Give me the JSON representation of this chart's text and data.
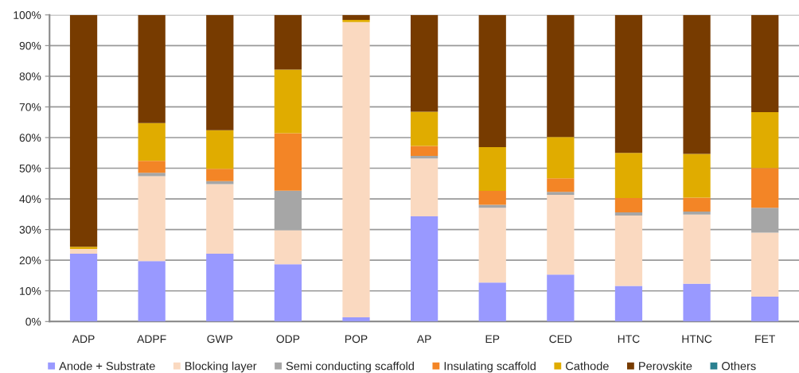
{
  "chart_data": {
    "type": "bar",
    "stacked": true,
    "categories": [
      "ADP",
      "ADPF",
      "GWP",
      "ODP",
      "POP",
      "AP",
      "EP",
      "CED",
      "HTC",
      "HTNC",
      "FET"
    ],
    "series": [
      {
        "name": "Anode + Substrate",
        "color": "#9999ff",
        "values": [
          22.1,
          19.7,
          22.1,
          18.7,
          1.4,
          34.3,
          12.7,
          15.3,
          11.6,
          12.3,
          8.1
        ]
      },
      {
        "name": "Blocking layer",
        "color": "#fad9c0",
        "values": [
          1.6,
          27.7,
          22.7,
          11.1,
          96.3,
          18.9,
          24.4,
          26.0,
          23.0,
          22.6,
          20.9
        ]
      },
      {
        "name": "Semi conducting scaffold",
        "color": "#a6a6a6",
        "values": [
          0,
          1.1,
          1.0,
          12.9,
          0,
          0.8,
          1.0,
          1.0,
          1.0,
          1.0,
          8.1
        ]
      },
      {
        "name": "Insulating scaffold",
        "color": "#f38526",
        "values": [
          0,
          3.9,
          4.0,
          18.7,
          0,
          3.3,
          4.5,
          4.4,
          4.7,
          4.5,
          13.0
        ]
      },
      {
        "name": "Cathode",
        "color": "#e0ac00",
        "values": [
          0.7,
          12.3,
          12.6,
          20.8,
          0.7,
          11.1,
          14.3,
          13.5,
          14.7,
          14.3,
          18.2
        ]
      },
      {
        "name": "Perovskite",
        "color": "#773b00",
        "values": [
          75.6,
          35.3,
          37.6,
          17.8,
          1.6,
          31.6,
          43.1,
          39.8,
          45.0,
          45.3,
          31.7
        ]
      },
      {
        "name": "Others",
        "color": "#2a8090",
        "values": [
          0,
          0,
          0,
          0,
          0,
          0,
          0,
          0,
          0,
          0,
          0
        ]
      }
    ],
    "ylim": [
      0,
      100
    ],
    "yticks": [
      {
        "value": 0,
        "label": "0%"
      },
      {
        "value": 10,
        "label": "10%"
      },
      {
        "value": 20,
        "label": "20%"
      },
      {
        "value": 30,
        "label": "30%"
      },
      {
        "value": 40,
        "label": "40%"
      },
      {
        "value": 50,
        "label": "50%"
      },
      {
        "value": 60,
        "label": "60%"
      },
      {
        "value": 70,
        "label": "70%"
      },
      {
        "value": 80,
        "label": "80%"
      },
      {
        "value": 90,
        "label": "90%"
      },
      {
        "value": 100,
        "label": "100%"
      }
    ],
    "grid": "y",
    "legend": "bottom"
  }
}
